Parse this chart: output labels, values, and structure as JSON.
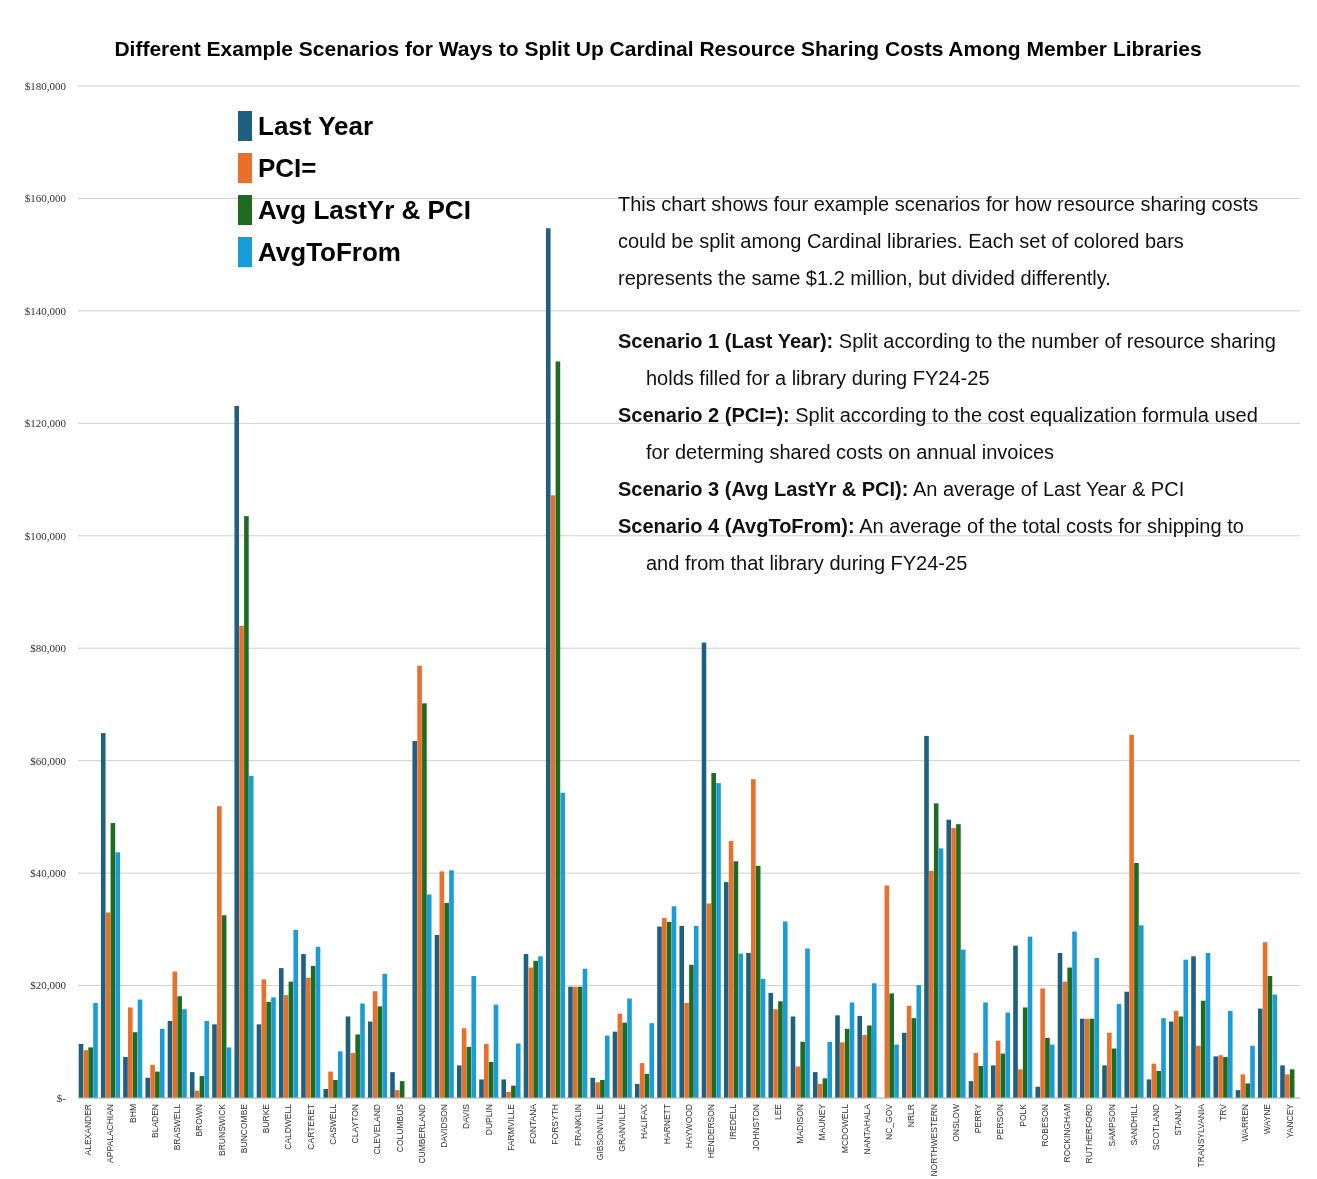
{
  "chart_data": {
    "type": "bar",
    "title": "Different Example Scenarios for Ways to Split Up Cardinal Resource Sharing Costs Among Member Libraries",
    "categories": [
      "ALEXANDER",
      "APPALACHIAN",
      "BHM",
      "BLADEN",
      "BRASWELL",
      "BROWN",
      "BRUNSWICK",
      "BUNCOMBE",
      "BURKE",
      "CALDWELL",
      "CARTERET",
      "CASWELL",
      "CLAYTON",
      "CLEVELAND",
      "COLUMBUS",
      "CUMBERLAND",
      "DAVIDSON",
      "DAVIS",
      "DUPLIN",
      "FARMVILLE",
      "FONTANA",
      "FORSYTH",
      "FRANKLIN",
      "GIBSONVILLE",
      "GRANVILLE",
      "HALIFAX",
      "HARNETT",
      "HAYWOOD",
      "HENDERSON",
      "IREDELL",
      "JOHNSTON",
      "LEE",
      "MADISON",
      "MAUNEY",
      "MCDOWELL",
      "NANTAHALA",
      "NC_GOV",
      "NRLR",
      "NORTHWESTERN",
      "ONSLOW",
      "PERRY",
      "PERSON",
      "POLK",
      "ROBESON",
      "ROCKINGHAM",
      "RUTHERFORD",
      "SAMPSON",
      "SANDHILL",
      "SCOTLAND",
      "STANLY",
      "TRANSYLVANIA",
      "TRV",
      "WARREN",
      "WAYNE",
      "YANCEY"
    ],
    "series": [
      {
        "name": "Last Year",
        "color": "#1f5f7f",
        "values": [
          9600,
          64900,
          7300,
          3600,
          13700,
          4600,
          13100,
          123100,
          13100,
          23100,
          25600,
          1600,
          14500,
          13600,
          4600,
          63500,
          29000,
          5800,
          3300,
          3300,
          25600,
          154700,
          19800,
          3600,
          11800,
          2500,
          30500,
          30600,
          81000,
          38400,
          25800,
          18700,
          14500,
          4600,
          14700,
          14600,
          0,
          11600,
          64400,
          49500,
          3000,
          5800,
          27100,
          2000,
          25800,
          14100,
          5800,
          18900,
          3300,
          13600,
          25200,
          7400,
          1400,
          15900,
          5800
        ]
      },
      {
        "name": "PCI=",
        "color": "#e8702a",
        "values": [
          8500,
          33000,
          16100,
          5900,
          22500,
          1300,
          51900,
          84000,
          21100,
          18300,
          21400,
          4700,
          8000,
          19000,
          1400,
          76900,
          40300,
          12400,
          9600,
          1100,
          23200,
          107200,
          19800,
          2800,
          15000,
          6200,
          32000,
          16900,
          34600,
          45700,
          56700,
          15800,
          5600,
          2500,
          9900,
          11200,
          37800,
          16400,
          40400,
          48000,
          8000,
          10200,
          5100,
          19500,
          20700,
          14100,
          11600,
          64600,
          6100,
          15500,
          9300,
          7600,
          4200,
          27700,
          4200
        ]
      },
      {
        "name": "Avg LastYr & PCI",
        "color": "#1e6b22",
        "values": [
          9000,
          48900,
          11700,
          4700,
          18100,
          3900,
          32500,
          103500,
          17100,
          20700,
          23500,
          3200,
          11300,
          16300,
          3000,
          70200,
          34700,
          9100,
          6400,
          2200,
          24400,
          131000,
          19800,
          3200,
          13400,
          4300,
          31300,
          23700,
          57800,
          42100,
          41300,
          17200,
          10000,
          3500,
          12300,
          12900,
          18600,
          14200,
          52400,
          48700,
          5700,
          7900,
          16100,
          10700,
          23200,
          14100,
          8800,
          41800,
          4800,
          14500,
          17300,
          7300,
          2600,
          21700,
          5100
        ]
      },
      {
        "name": "AvgToFrom",
        "color": "#1a9cd8",
        "values": [
          16900,
          43700,
          17500,
          12300,
          15800,
          13700,
          9000,
          57300,
          17900,
          29900,
          26900,
          8300,
          16800,
          22100,
          0,
          36200,
          40500,
          21700,
          16600,
          9700,
          25200,
          54300,
          23000,
          11100,
          17700,
          13300,
          34100,
          30600,
          56000,
          25700,
          21200,
          31400,
          26600,
          10000,
          17000,
          20400,
          9500,
          20100,
          44400,
          26400,
          17000,
          15200,
          28700,
          9500,
          29600,
          24900,
          16700,
          30700,
          14200,
          24600,
          25800,
          15500,
          9300,
          18400,
          0
        ]
      }
    ],
    "ylim": [
      0,
      180000
    ],
    "yticks": [
      {
        "value": 0,
        "label": "$-"
      },
      {
        "value": 20000,
        "label": "$20,000"
      },
      {
        "value": 40000,
        "label": "$40,000"
      },
      {
        "value": 60000,
        "label": "$60,000"
      },
      {
        "value": 80000,
        "label": "$80,000"
      },
      {
        "value": 100000,
        "label": "$100,000"
      },
      {
        "value": 120000,
        "label": "$120,000"
      },
      {
        "value": 140000,
        "label": "$140,000"
      },
      {
        "value": 160000,
        "label": "$160,000"
      },
      {
        "value": 180000,
        "label": "$180,000"
      }
    ],
    "grid": "y",
    "legend": "top left",
    "annotations": [
      "This chart shows four example scenarios for how resource sharing costs could be split among Cardinal libraries. Each set of colored bars represents the same $1.2 million, but divided differently.",
      "Scenario 1 (Last Year): Split according to the number of resource sharing holds filled for a library during FY24-25",
      "Scenario 2 (PCI=): Split according to the cost equalization formula used for determing shared costs on annual invoices",
      "Scenario 3 (Avg LastYr & PCI): An average of Last Year & PCI",
      "Scenario 4 (AvgToFrom): An average of the total costs for shipping to and from that library during FY24-25"
    ]
  }
}
